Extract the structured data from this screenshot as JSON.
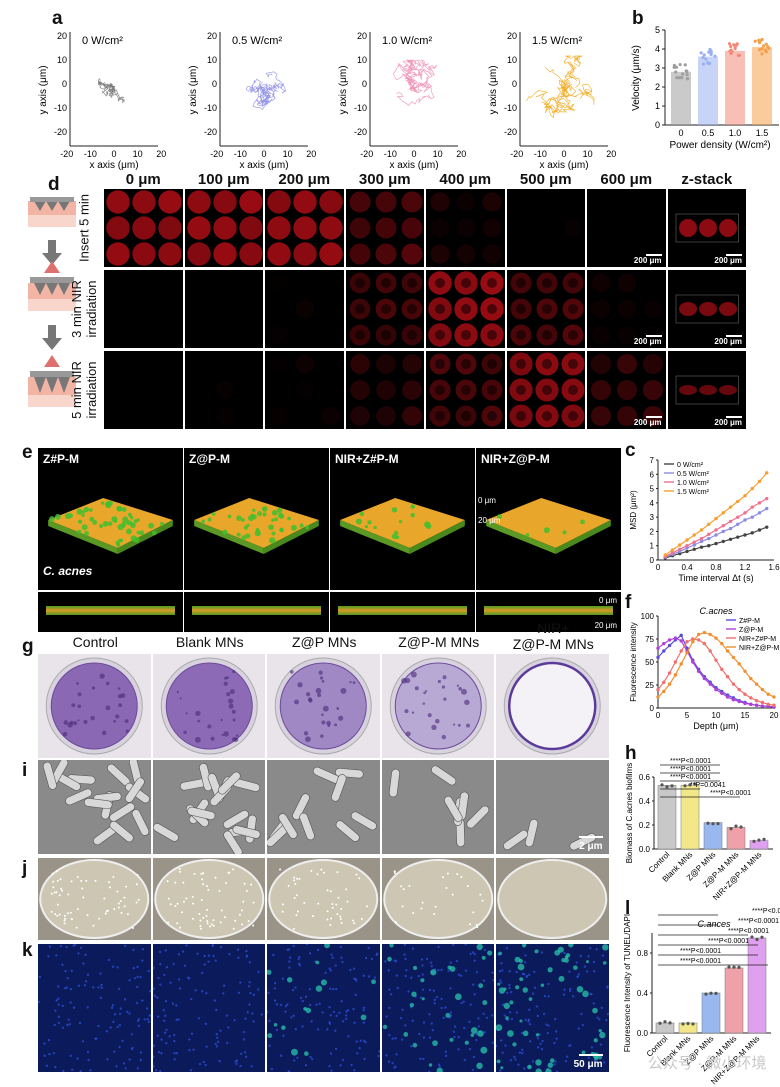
{
  "panels": {
    "a": {
      "label": "a",
      "plots": [
        {
          "title": "0 W/cm²",
          "color": "#7a7a7a"
        },
        {
          "title": "0.5 W/cm²",
          "color": "#8f8fe8"
        },
        {
          "title": "1.0 W/cm²",
          "color": "#ef8fb4"
        },
        {
          "title": "1.5 W/cm²",
          "color": "#f0a81a"
        }
      ],
      "xlabel": "x axis (μm)",
      "ylabel": "y axis (μm)",
      "yticks": [
        "20",
        "10",
        "0",
        "-10",
        "-20"
      ],
      "xticks": [
        "-20",
        "-10",
        "0",
        "10",
        "20"
      ]
    },
    "b": {
      "label": "b"
    },
    "c": {
      "label": "c"
    },
    "d": {
      "label": "d",
      "columns": [
        "0 μm",
        "100 μm",
        "200 μm",
        "300 μm",
        "400 μm",
        "500 μm",
        "600 μm",
        "z-stack"
      ],
      "rows": [
        {
          "label": "Insert 5 min",
          "intensity": [
            0.9,
            0.9,
            0.9,
            0.5,
            0.2,
            0.05,
            0.0,
            0.7
          ]
        },
        {
          "label": "3 min NIR\nirradiation",
          "intensity": [
            0.0,
            0.0,
            0.1,
            0.45,
            0.9,
            0.5,
            0.1,
            0.6
          ]
        },
        {
          "label": "5 min NIR\nirradiation",
          "intensity": [
            0.0,
            0.05,
            0.1,
            0.3,
            0.5,
            0.85,
            0.35,
            0.5
          ]
        }
      ],
      "scale_bar": "200 μm"
    },
    "e": {
      "label": "e",
      "groups": [
        "Z#P-M",
        "Z@P-M",
        "NIR+Z#P-M",
        "NIR+Z@P-M"
      ],
      "organism": "C. acnes",
      "depth_top": "0 μm",
      "depth_bottom": "20 μm"
    },
    "f": {
      "label": "f"
    },
    "g": {
      "label": "g",
      "groups": [
        "Control",
        "Blank MNs",
        "Z@P MNs",
        "Z@P-M MNs",
        "NIR+\nZ@P-M MNs"
      ]
    },
    "h": {
      "label": "h"
    },
    "i": {
      "label": "i",
      "scale_bar": "2 μm"
    },
    "j": {
      "label": "j"
    },
    "k": {
      "label": "k",
      "scale_bar": "50 μm"
    },
    "l": {
      "label": "l"
    }
  },
  "watermark": "公众号 · 微小环境",
  "chart_data": [
    {
      "panel": "b",
      "type": "bar",
      "categories": [
        "0",
        "0.5",
        "1.0",
        "1.5"
      ],
      "values": [
        2.8,
        3.6,
        3.9,
        4.1
      ],
      "colors": [
        "#9e9e9e",
        "#9ab0f0",
        "#f28a7a",
        "#f5a04a"
      ],
      "xlabel": "Power density (W/cm²)",
      "ylabel": "Velocity (μm/s)",
      "ylim": [
        0,
        5
      ],
      "yticks": [
        0,
        1,
        2,
        3,
        4,
        5
      ]
    },
    {
      "panel": "c",
      "type": "line",
      "xlabel": "Time interval Δt (s)",
      "ylabel": "MSD (μm²)",
      "xlim": [
        0,
        1.6
      ],
      "ylim": [
        0,
        7
      ],
      "xticks": [
        "0",
        "0.4",
        "0.8",
        "1.2",
        "1.6"
      ],
      "yticks": [
        0,
        1,
        2,
        3,
        4,
        5,
        6,
        7
      ],
      "x": [
        0.1,
        0.2,
        0.3,
        0.4,
        0.5,
        0.6,
        0.7,
        0.8,
        0.9,
        1.0,
        1.1,
        1.2,
        1.3,
        1.4,
        1.5
      ],
      "series": [
        {
          "name": "0 W/cm²",
          "color": "#444444",
          "values": [
            0.15,
            0.3,
            0.45,
            0.6,
            0.75,
            0.9,
            1.0,
            1.15,
            1.3,
            1.45,
            1.6,
            1.75,
            1.9,
            2.1,
            2.3
          ]
        },
        {
          "name": "0.5 W/cm²",
          "color": "#8c8ce8",
          "values": [
            0.2,
            0.4,
            0.6,
            0.85,
            1.05,
            1.3,
            1.5,
            1.75,
            2.0,
            2.2,
            2.5,
            2.8,
            3.0,
            3.3,
            3.6
          ]
        },
        {
          "name": "1.0 W/cm²",
          "color": "#f07090",
          "values": [
            0.25,
            0.5,
            0.75,
            1.0,
            1.25,
            1.5,
            1.8,
            2.1,
            2.4,
            2.7,
            3.0,
            3.3,
            3.7,
            4.0,
            4.3
          ]
        },
        {
          "name": "1.5 W/cm²",
          "color": "#f5a030",
          "values": [
            0.35,
            0.7,
            1.05,
            1.4,
            1.75,
            2.1,
            2.5,
            2.9,
            3.3,
            3.7,
            4.1,
            4.5,
            5.0,
            5.5,
            6.1
          ]
        }
      ]
    },
    {
      "panel": "f",
      "type": "line",
      "title": "C.acnes",
      "xlabel": "Depth (μm)",
      "ylabel": "Fluorescence intensity",
      "xlim": [
        0,
        20
      ],
      "ylim": [
        0,
        100
      ],
      "xticks": [
        "0",
        "5",
        "10",
        "15",
        "20"
      ],
      "yticks": [
        0,
        25,
        50,
        75,
        100
      ],
      "x": [
        0,
        1,
        2,
        3,
        4,
        5,
        6,
        7,
        8,
        9,
        10,
        11,
        12,
        13,
        14,
        15,
        16,
        17,
        18,
        19,
        20
      ],
      "series": [
        {
          "name": "Z#P-M",
          "color": "#5a4bd8",
          "values": [
            55,
            62,
            68,
            74,
            79,
            65,
            52,
            42,
            34,
            28,
            22,
            18,
            14,
            11,
            8,
            6,
            4,
            3,
            2,
            2,
            1
          ]
        },
        {
          "name": "Z@P-M",
          "color": "#b040d8",
          "values": [
            65,
            70,
            74,
            76,
            73,
            62,
            50,
            40,
            32,
            26,
            20,
            16,
            12,
            9,
            7,
            5,
            4,
            3,
            2,
            2,
            1
          ]
        },
        {
          "name": "NIR+Z#P-M",
          "color": "#f07070",
          "values": [
            20,
            28,
            38,
            50,
            62,
            72,
            75,
            74,
            70,
            62,
            52,
            42,
            34,
            26,
            20,
            15,
            11,
            8,
            6,
            4,
            3
          ]
        },
        {
          "name": "NIR+Z@P-M",
          "color": "#f09030",
          "values": [
            12,
            18,
            26,
            36,
            48,
            60,
            72,
            80,
            82,
            80,
            76,
            70,
            62,
            55,
            48,
            40,
            32,
            26,
            20,
            15,
            12
          ]
        }
      ]
    },
    {
      "panel": "h",
      "type": "bar",
      "categories": [
        "Control",
        "Blank MNs",
        "Z@P MNs",
        "Z@P-M MNs",
        "NIR+Z@P-M MNs"
      ],
      "values": [
        0.53,
        0.53,
        0.22,
        0.18,
        0.07
      ],
      "colors": [
        "#c8c8c8",
        "#f2e88a",
        "#9ab8f0",
        "#f0a0a8",
        "#e0a0f0"
      ],
      "ylabel": "Biomass of C.acnes biofilms",
      "ylim": [
        0,
        0.6
      ],
      "yticks": [
        "0.0",
        "0.2",
        "0.4",
        "0.6"
      ],
      "annotations": [
        "****P<0.0001",
        "****P<0.0001",
        "****P<0.0001",
        "**P=0.0041",
        "****P<0.0001"
      ]
    },
    {
      "panel": "l",
      "type": "bar",
      "title": "C.ances",
      "categories": [
        "Control",
        "Blank MNs",
        "Z@P MNs",
        "Z@P-M MNs",
        "NIR+Z@P-M MNs"
      ],
      "values": [
        0.1,
        0.1,
        0.4,
        0.65,
        0.95
      ],
      "colors": [
        "#c8c8c8",
        "#f2e88a",
        "#9ab8f0",
        "#f0a0a8",
        "#e0a0f0"
      ],
      "ylabel": "Fluorescence Intensity of TUNEL/DAPI",
      "ylim": [
        0,
        1.0
      ],
      "yticks": [
        "0.0",
        "0.4",
        "0.8"
      ],
      "annotations": [
        "****P<0.0001",
        "****P<0.0001",
        "****P<0.0001",
        "****P<0.0001",
        "****P<0.0001",
        "****P<0.0001"
      ]
    }
  ]
}
